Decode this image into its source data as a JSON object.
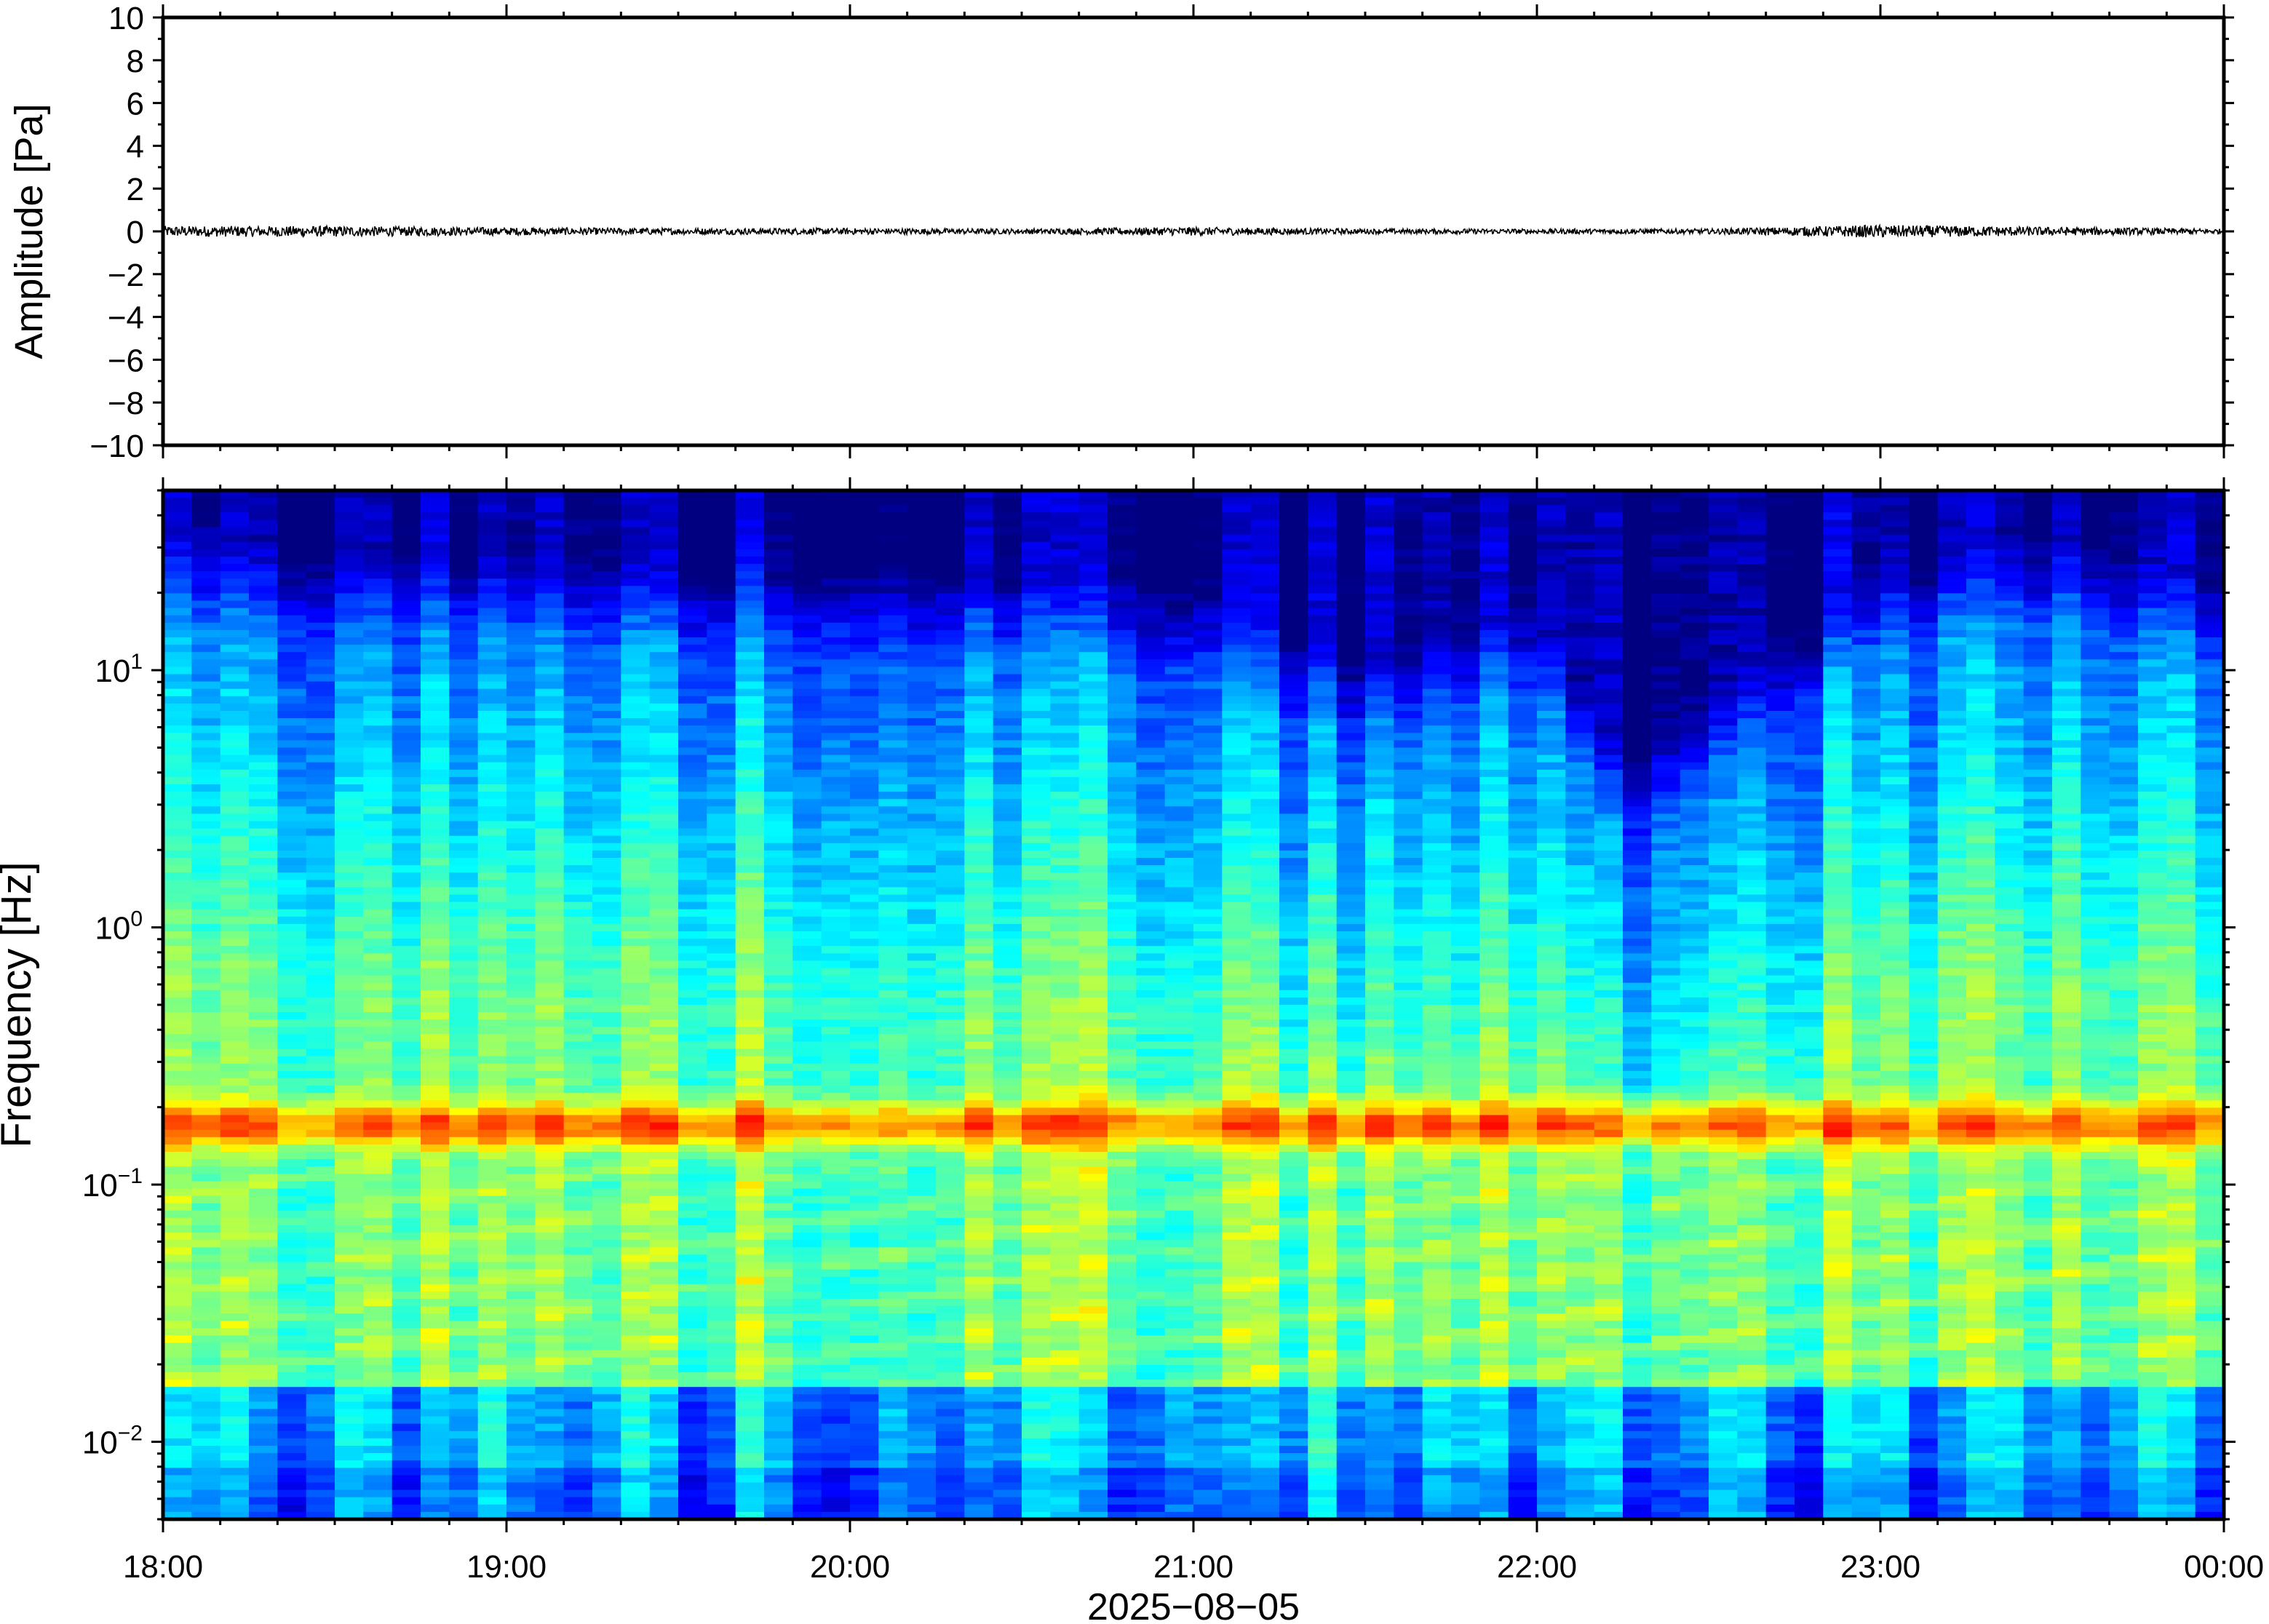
{
  "chart_data": [
    {
      "type": "line",
      "title": "",
      "ylabel": "Amplitude [Pa]",
      "xlabel": "",
      "ylim": [
        -10,
        10
      ],
      "yticks": [
        "10",
        "8",
        "6",
        "4",
        "2",
        "0",
        "−2",
        "−4",
        "−6",
        "−8",
        "−10"
      ],
      "ytick_values": [
        10,
        8,
        6,
        4,
        2,
        0,
        -2,
        -4,
        -6,
        -8,
        -10
      ],
      "xlim": [
        "18:00",
        "00:00"
      ],
      "grid": false,
      "series": [
        {
          "color": "#000000",
          "description_values": "pressure trace near 0 Pa, noise envelope roughly ±0.3 Pa",
          "x": [
            "18:00",
            "18:30",
            "19:00",
            "19:30",
            "20:00",
            "20:30",
            "21:00",
            "21:30",
            "22:00",
            "22:30",
            "23:00",
            "23:30",
            "00:00"
          ],
          "y": [
            0,
            0,
            0,
            0,
            0,
            0,
            0,
            0,
            0,
            0,
            0,
            0,
            0
          ],
          "envelope": [
            0.25,
            0.25,
            0.18,
            0.15,
            0.15,
            0.12,
            0.2,
            0.12,
            0.12,
            0.12,
            0.3,
            0.2,
            0.12
          ]
        }
      ]
    },
    {
      "type": "heatmap",
      "title": "",
      "ylabel": "Frequency [Hz]",
      "xlabel": "2025−08−05",
      "yscale": "log",
      "ylim": [
        0.005,
        50
      ],
      "yticks": [
        {
          "base": "10",
          "exp": "1",
          "value": 10
        },
        {
          "base": "10",
          "exp": "0",
          "value": 1
        },
        {
          "base": "10",
          "exp": "−1",
          "value": 0.1
        },
        {
          "base": "10",
          "exp": "−2",
          "value": 0.01
        }
      ],
      "xticks": [
        "18:00",
        "19:00",
        "20:00",
        "21:00",
        "22:00",
        "23:00",
        "00:00"
      ],
      "xtick_hours": [
        18,
        19,
        20,
        21,
        22,
        23,
        24
      ],
      "xlim": [
        "18:00",
        "00:00"
      ],
      "colormap": "jet",
      "grid": false,
      "microseism_peak_hz": 0.17,
      "high_freq_rolloff_hz": [
        {
          "x": "18:00",
          "hz": 15
        },
        {
          "x": "19:00",
          "hz": 12
        },
        {
          "x": "20:00",
          "hz": 12
        },
        {
          "x": "21:00",
          "hz": 10
        },
        {
          "x": "21:30",
          "hz": 5
        },
        {
          "x": "22:00",
          "hz": 8
        },
        {
          "x": "22:15",
          "hz": 2
        },
        {
          "x": "23:00",
          "hz": 12
        },
        {
          "x": "23:30",
          "hz": 15
        },
        {
          "x": "00:00",
          "hz": 10
        }
      ],
      "colors": {
        "low": "#0a0078",
        "mid_low": "#1e78ff",
        "mid": "#4fd2e6",
        "mid_high": "#f0f08c",
        "high": "#f07030"
      }
    }
  ]
}
